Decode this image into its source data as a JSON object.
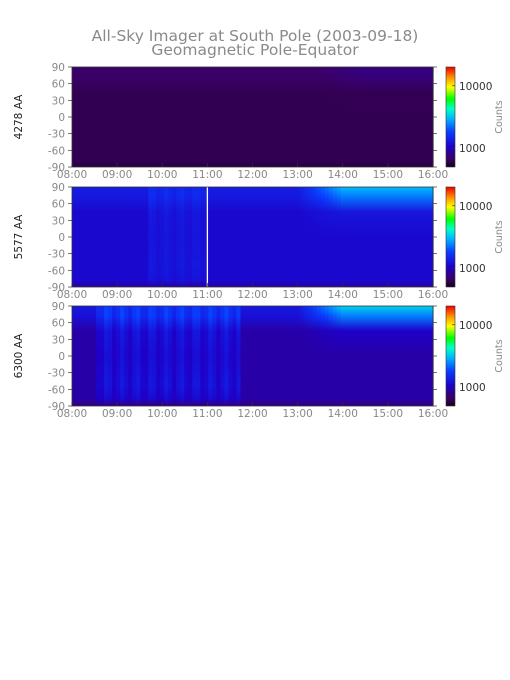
{
  "title": "All-Sky Imager at South Pole (2003-09-18)",
  "subtitle": "Geomagnetic Pole-Equator",
  "chart_data": [
    {
      "type": "heatmap",
      "ylabel": "4278 AA",
      "x_ticks": [
        "08:00",
        "09:00",
        "10:00",
        "11:00",
        "12:00",
        "13:00",
        "14:00",
        "15:00",
        "16:00"
      ],
      "y_ticks": [
        90,
        60,
        30,
        0,
        -30,
        -60,
        -90
      ],
      "xlim": [
        "08:00",
        "16:00"
      ],
      "ylim": [
        -90,
        90
      ],
      "colorbar": {
        "label": "Counts",
        "ticks": [
          10000,
          1000
        ],
        "tick_labels": [
          "10000",
          "1000"
        ],
        "scale": "log",
        "range": [
          500,
          20000
        ]
      },
      "intensity": {
        "base": 0.06,
        "north": 0.03,
        "patch_level": 0,
        "patch_start": "09:15",
        "patch_end": "11:50",
        "late_north": 0.03,
        "late_start": "13:30"
      },
      "data_gap": null
    },
    {
      "type": "heatmap",
      "ylabel": "5577 AA",
      "x_ticks": [
        "08:00",
        "09:00",
        "10:00",
        "11:00",
        "12:00",
        "13:00",
        "14:00",
        "15:00",
        "16:00"
      ],
      "y_ticks": [
        90,
        60,
        30,
        0,
        -30,
        -60,
        -90
      ],
      "xlim": [
        "08:00",
        "16:00"
      ],
      "ylim": [
        -90,
        90
      ],
      "colorbar": {
        "label": "Counts",
        "ticks": [
          10000,
          1000
        ],
        "tick_labels": [
          "10000",
          "1000"
        ],
        "scale": "log",
        "range": [
          500,
          20000
        ]
      },
      "intensity": {
        "base": 0.22,
        "north": 0.05,
        "patch_level": 0.05,
        "patch_start": "09:40",
        "patch_end": "11:00",
        "late_north": 0.22,
        "late_start": "13:00"
      },
      "data_gap": "11:00"
    },
    {
      "type": "heatmap",
      "ylabel": "6300 AA",
      "x_ticks": [
        "08:00",
        "09:00",
        "10:00",
        "11:00",
        "12:00",
        "13:00",
        "14:00",
        "15:00",
        "16:00"
      ],
      "y_ticks": [
        90,
        60,
        30,
        0,
        -30,
        -60,
        -90
      ],
      "xlim": [
        "08:00",
        "16:00"
      ],
      "ylim": [
        -90,
        90
      ],
      "colorbar": {
        "label": "Counts",
        "ticks": [
          10000,
          1000
        ],
        "tick_labels": [
          "10000",
          "1000"
        ],
        "scale": "log",
        "range": [
          500,
          20000
        ]
      },
      "intensity": {
        "base": 0.16,
        "north": 0.1,
        "patch_level": 0.12,
        "patch_start": "08:30",
        "patch_end": "11:45",
        "late_north": 0.26,
        "late_start": "13:00"
      },
      "data_gap": null
    }
  ]
}
